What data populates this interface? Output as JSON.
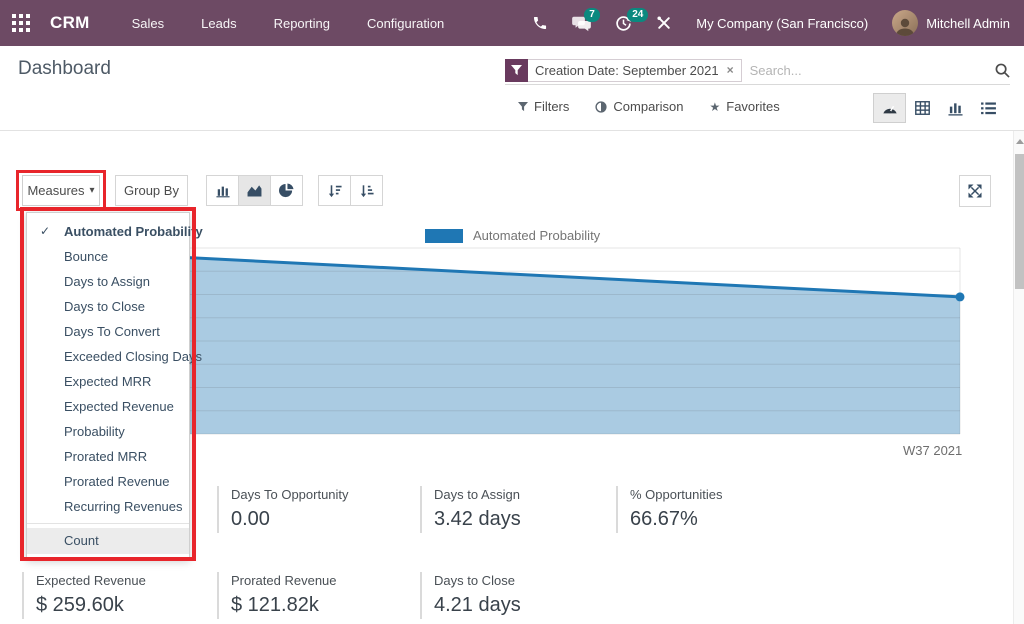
{
  "colors": {
    "navbar_bg": "#6d4a64",
    "badge": "#0b897f",
    "chart_line": "#1f77b4",
    "chart_fill": "rgba(31,119,180,0.38)",
    "highlight_red": "#e8252b"
  },
  "navbar": {
    "app_name": "CRM",
    "menus": [
      "Sales",
      "Leads",
      "Reporting",
      "Configuration"
    ],
    "message_badge": "7",
    "activity_badge": "24",
    "company": "My Company (San Francisco)",
    "user": "Mitchell Admin"
  },
  "header": {
    "breadcrumb": "Dashboard",
    "facet_label": "Creation Date: September 2021",
    "facet_close": "×",
    "search_placeholder": "Search...",
    "filters_label": "Filters",
    "comparison_label": "Comparison",
    "favorites_label": "Favorites"
  },
  "controls": {
    "measures_label": "Measures",
    "measures_caret": "▾",
    "groupby_label": "Group By"
  },
  "measures_menu": {
    "check_glyph": "✓",
    "items": [
      {
        "label": "Automated Probability",
        "checked": true
      },
      {
        "label": "Bounce",
        "checked": false
      },
      {
        "label": "Days to Assign",
        "checked": false
      },
      {
        "label": "Days to Close",
        "checked": false
      },
      {
        "label": "Days To Convert",
        "checked": false
      },
      {
        "label": "Exceeded Closing Days",
        "checked": false
      },
      {
        "label": "Expected MRR",
        "checked": false
      },
      {
        "label": "Expected Revenue",
        "checked": false
      },
      {
        "label": "Probability",
        "checked": false
      },
      {
        "label": "Prorated MRR",
        "checked": false
      },
      {
        "label": "Prorated Revenue",
        "checked": false
      },
      {
        "label": "Recurring Revenues",
        "checked": false
      }
    ],
    "footer_item": {
      "label": "Count",
      "highlighted": true
    }
  },
  "chart_data": {
    "type": "area",
    "series": [
      {
        "name": "Automated Probability",
        "points_norm": [
          {
            "x": 0,
            "y": 0.978
          },
          {
            "x": 1,
            "y": 0.737
          }
        ]
      }
    ],
    "x_tick_labels": [
      "W37 2021"
    ],
    "legend_position": "top",
    "grid": true,
    "h_gridline_count": 9,
    "note": "y values normalized 0-1 of plot height; no y-axis labels visible; left portion of plot occluded by open Measures dropdown"
  },
  "kpis": [
    {
      "label": "Days To Opportunity",
      "value": "0.00",
      "row": 1,
      "col": 2
    },
    {
      "label": "Days to Assign",
      "value": "3.42 days",
      "row": 1,
      "col": 3
    },
    {
      "label": "% Opportunities",
      "value": "66.67%",
      "row": 1,
      "col": 4
    },
    {
      "label": "Expected Revenue",
      "value": "$ 259.60k",
      "row": 2,
      "col": 1
    },
    {
      "label": "Prorated Revenue",
      "value": "$ 121.82k",
      "row": 2,
      "col": 2
    },
    {
      "label": "Days to Close",
      "value": "4.21 days",
      "row": 2,
      "col": 3
    }
  ]
}
